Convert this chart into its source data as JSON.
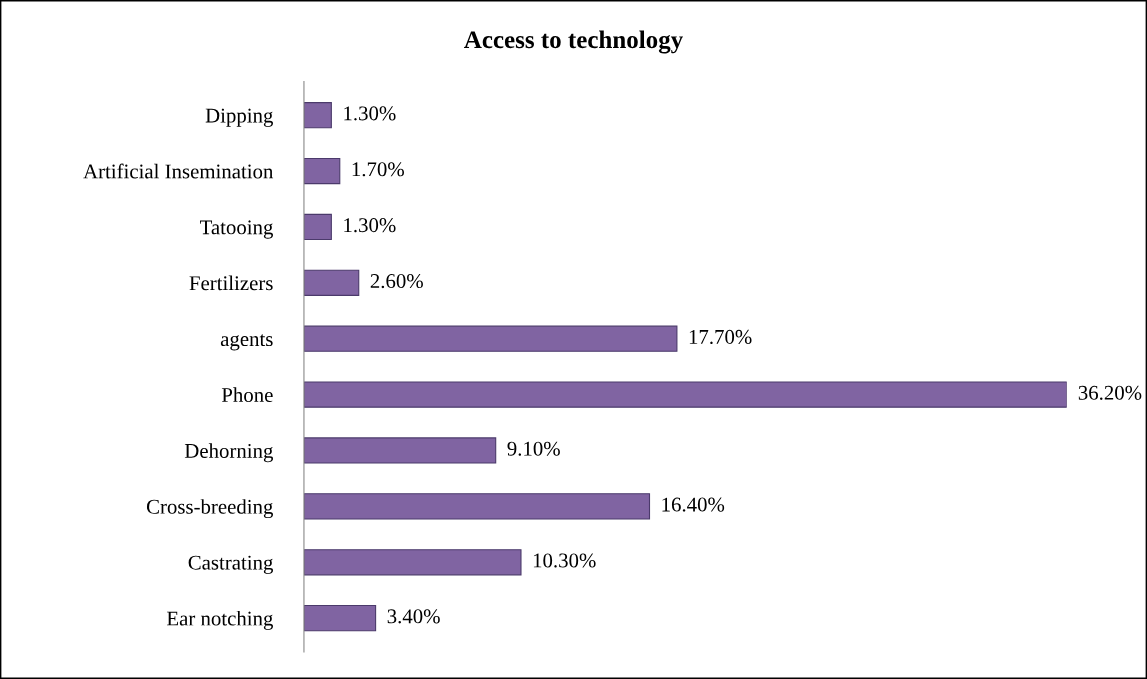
{
  "chart_data": {
    "type": "bar",
    "orientation": "horizontal",
    "title": "Access to technology",
    "categories": [
      "Dipping",
      "Artificial Insemination",
      "Tatooing",
      "Fertilizers",
      "agents",
      "Phone",
      "Dehorning",
      "Cross-breeding",
      "Castrating",
      "Ear notching"
    ],
    "values": [
      1.3,
      1.7,
      1.3,
      2.6,
      17.7,
      36.2,
      9.1,
      16.4,
      10.3,
      3.4
    ],
    "value_labels": [
      "1.30%",
      "1.70%",
      "1.30%",
      "2.60%",
      "17.70%",
      "36.20%",
      "9.10%",
      "16.40%",
      "10.30%",
      "3.40%"
    ],
    "color": "#8064a2",
    "grid": false,
    "legend": false
  }
}
